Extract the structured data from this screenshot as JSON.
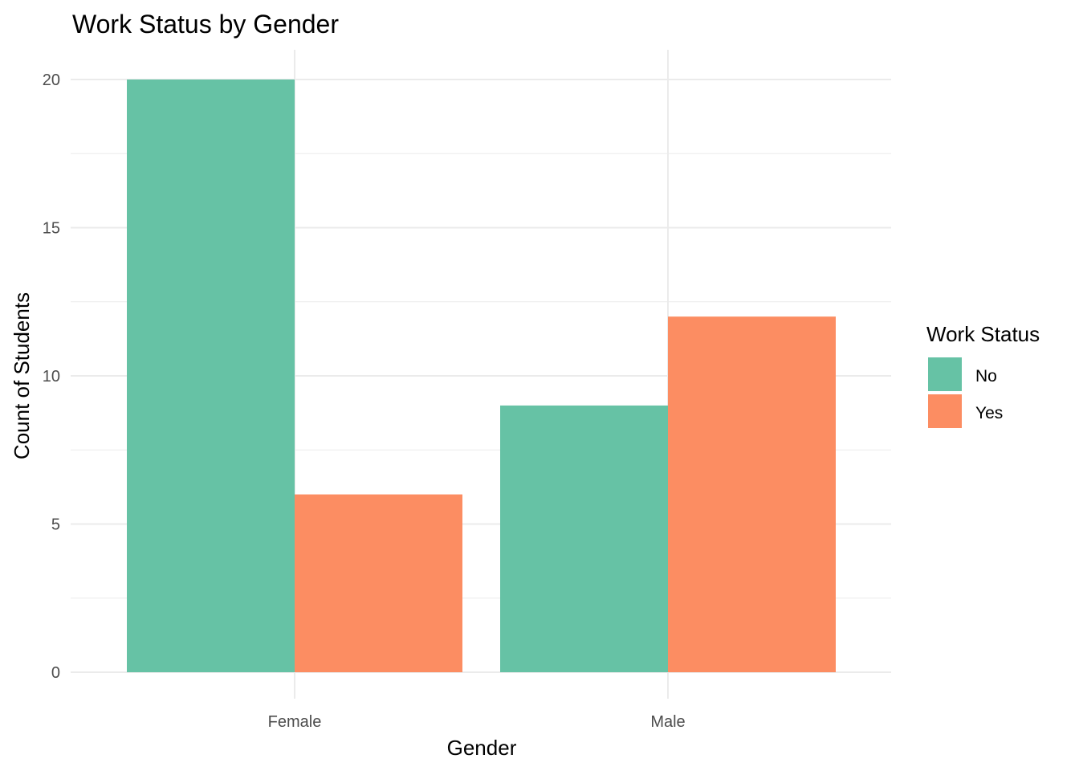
{
  "chart_data": {
    "type": "bar",
    "title": "Work Status by Gender",
    "xlabel": "Gender",
    "ylabel": "Count of Students",
    "categories": [
      "Female",
      "Male"
    ],
    "series": [
      {
        "name": "No",
        "color": "#66c2a5",
        "values": [
          20,
          9
        ]
      },
      {
        "name": "Yes",
        "color": "#fc8d62",
        "values": [
          6,
          12
        ]
      }
    ],
    "ylim": [
      0,
      21
    ],
    "yticks": [
      0,
      5,
      10,
      15,
      20
    ],
    "yticks_minor": [
      2.5,
      7.5,
      12.5,
      17.5
    ],
    "grid": true,
    "legend": {
      "title": "Work Status",
      "placement": "right"
    }
  }
}
